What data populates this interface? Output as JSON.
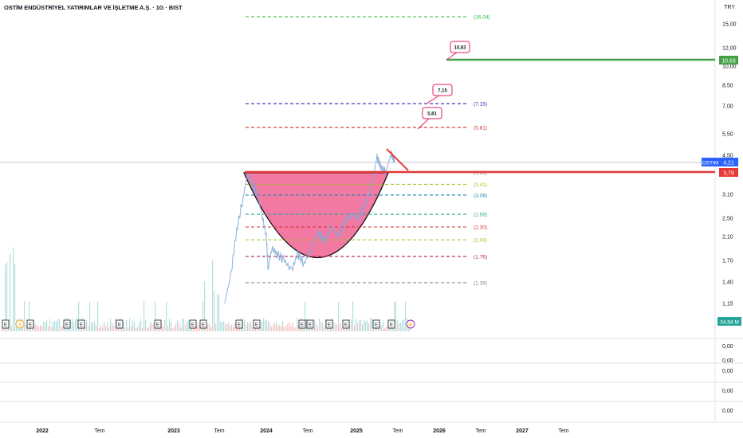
{
  "header": {
    "title": "OSTİM ENDÜSTRİYEL YATIRIMLAR VE İŞLETME A.Ş. · 1G · BIST",
    "currency": "TRY"
  },
  "chart_data": {
    "type": "line",
    "symbol": "OSTIM",
    "last_price_label": "4,21",
    "support_label": "3,79",
    "target_label": "10,63",
    "volume_label": "34,94 M",
    "y_ticks": [
      "15,00",
      "12,00",
      "10,00",
      "8,50",
      "7,00",
      "5,50",
      "4,50",
      "3,10",
      "2,50",
      "2,10",
      "1,70",
      "1,40",
      "1,15"
    ],
    "y_tick_values": [
      15.0,
      12.0,
      10.0,
      8.5,
      7.0,
      5.5,
      4.5,
      3.1,
      2.5,
      2.1,
      1.7,
      1.4,
      1.15
    ],
    "x_ticks": [
      "2022",
      "Tem",
      "2023",
      "Tem",
      "2024",
      "Tem",
      "2025",
      "Tem",
      "2026",
      "Tem",
      "2027",
      "Tem"
    ],
    "sub_pane_labels": [
      "0,00",
      "0,00",
      "0,00",
      "0,00",
      "0,00",
      "0,00"
    ],
    "fib_levels": [
      {
        "label": "(16,04)",
        "value": 16.04,
        "color": "#2db82d"
      },
      {
        "label": "(7,15)",
        "value": 7.15,
        "color": "#2a2ab8"
      },
      {
        "label": "(5,81)",
        "value": 5.81,
        "color": "#d32f2f"
      },
      {
        "label": "(3,82)",
        "value": 3.82,
        "color": "#888888"
      },
      {
        "label": "(3,41)",
        "value": 3.41,
        "color": "#a4c41c"
      },
      {
        "label": "(3,08)",
        "value": 3.08,
        "color": "#1e88a8"
      },
      {
        "label": "(2,59)",
        "value": 2.59,
        "color": "#26a69a"
      },
      {
        "label": "(2,30)",
        "value": 2.3,
        "color": "#d32f2f"
      },
      {
        "label": "(2,04)",
        "value": 2.04,
        "color": "#a4c41c"
      },
      {
        "label": "(1,76)",
        "value": 1.76,
        "color": "#b71c5c"
      },
      {
        "label": "(1,39)",
        "value": 1.39,
        "color": "#888888"
      }
    ],
    "callouts": [
      {
        "label": "10,63",
        "value": 10.63
      },
      {
        "label": "7,15",
        "value": 7.15
      },
      {
        "label": "5,81",
        "value": 5.81
      }
    ],
    "event_markers": [
      "E",
      "$",
      "E",
      "E",
      "E",
      "E",
      "E",
      "E",
      "E",
      "E",
      "E",
      "E",
      "E",
      "E",
      "E",
      "E",
      "E",
      "E",
      "E",
      "E",
      "⚡"
    ],
    "price_series": {
      "name": "",
      "points": [
        [
          2023.55,
          1.15
        ],
        [
          2023.62,
          1.5
        ],
        [
          2023.68,
          2.2
        ],
        [
          2023.75,
          3.0
        ],
        [
          2023.8,
          3.8
        ],
        [
          2023.85,
          3.4
        ],
        [
          2023.9,
          3.1
        ],
        [
          2023.95,
          2.6
        ],
        [
          2024.0,
          2.1
        ],
        [
          2024.02,
          1.55
        ],
        [
          2024.06,
          1.9
        ],
        [
          2024.12,
          1.8
        ],
        [
          2024.2,
          1.7
        ],
        [
          2024.28,
          1.55
        ],
        [
          2024.35,
          1.8
        ],
        [
          2024.42,
          1.65
        ],
        [
          2024.5,
          1.9
        ],
        [
          2024.58,
          2.2
        ],
        [
          2024.65,
          2.0
        ],
        [
          2024.72,
          2.3
        ],
        [
          2024.8,
          2.1
        ],
        [
          2024.88,
          2.45
        ],
        [
          2024.95,
          2.6
        ],
        [
          2025.02,
          2.5
        ],
        [
          2025.1,
          2.8
        ],
        [
          2025.18,
          3.3
        ],
        [
          2025.25,
          4.4
        ],
        [
          2025.3,
          4.0
        ],
        [
          2025.36,
          3.85
        ],
        [
          2025.42,
          4.6
        ],
        [
          2025.46,
          4.21
        ]
      ]
    }
  }
}
